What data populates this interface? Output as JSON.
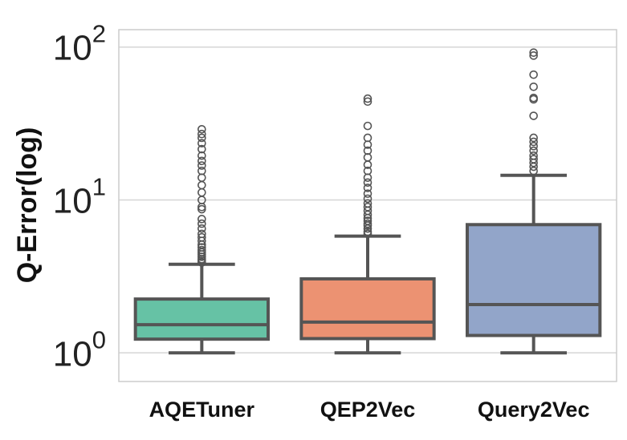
{
  "chart_data": {
    "type": "boxplot",
    "title": "",
    "xlabel": "",
    "ylabel": "Q-Error(log)",
    "yscale": "log",
    "ylim": [
      0.65,
      130
    ],
    "grid": true,
    "y_ticks": [
      {
        "value": 1,
        "base": "10",
        "exp": "0"
      },
      {
        "value": 10,
        "base": "10",
        "exp": "1"
      },
      {
        "value": 100,
        "base": "10",
        "exp": "2"
      }
    ],
    "categories": [
      "AQETuner",
      "QEP2Vec",
      "Query2Vec"
    ],
    "colors": [
      "#66c2a5",
      "#ec9272",
      "#92a5c9"
    ],
    "edge_color": "#555555",
    "boxes": [
      {
        "name": "AQETuner",
        "whisker_low": 1.0,
        "q1": 1.23,
        "median": 1.53,
        "q3": 2.25,
        "whisker_high": 3.8,
        "outliers": [
          3.9,
          4.0,
          4.1,
          4.25,
          4.4,
          4.55,
          4.7,
          4.9,
          5.1,
          5.4,
          5.7,
          6.0,
          6.5,
          7.0,
          7.5,
          8.7,
          9.0,
          10.0,
          11.2,
          12.5,
          14.0,
          15.5,
          16.8,
          18.0,
          19.5,
          21.5,
          23.5,
          25.5,
          27.0,
          29.0
        ]
      },
      {
        "name": "QEP2Vec",
        "whisker_low": 1.0,
        "q1": 1.24,
        "median": 1.59,
        "q3": 3.05,
        "whisker_high": 5.8,
        "outliers": [
          6.0,
          6.2,
          6.5,
          6.8,
          7.0,
          7.3,
          7.6,
          8.0,
          8.5,
          9.0,
          9.5,
          10.2,
          11.0,
          12.0,
          13.0,
          14.0,
          15.5,
          17.0,
          19.0,
          21.0,
          23.0,
          25.5,
          30.5,
          44.0,
          46.0
        ]
      },
      {
        "name": "Query2Vec",
        "whisker_low": 1.0,
        "q1": 1.3,
        "median": 2.07,
        "q3": 6.9,
        "whisker_high": 14.5,
        "outliers": [
          15.5,
          16.5,
          17.5,
          18.5,
          19.5,
          21.0,
          22.5,
          24.0,
          25.5,
          35.5,
          45.5,
          46.5,
          55.0,
          66.0,
          88.0,
          92.0
        ]
      }
    ]
  }
}
